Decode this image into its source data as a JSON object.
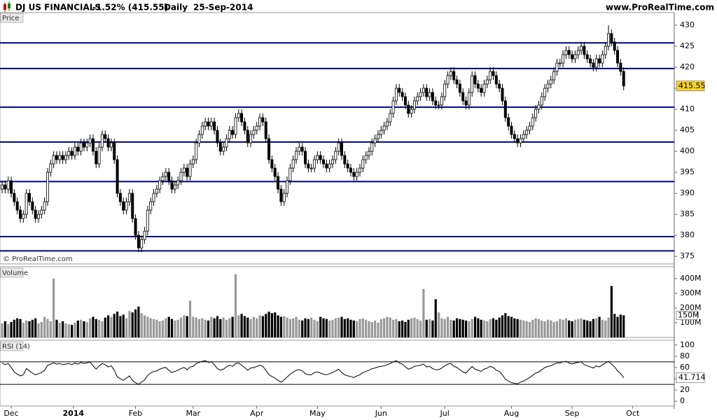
{
  "header": {
    "instrument": "DJ US FINANCIALS",
    "change": "-1.52% (415.55)",
    "period": "Daily",
    "date": "25-Sep-2014",
    "site": "www.ProRealTime.com"
  },
  "watermark": "© ProRealTime.com",
  "chart_data": [
    {
      "type": "candlestick",
      "label": "Price",
      "open": [
        391,
        392,
        391,
        393,
        390,
        388,
        386,
        384,
        385,
        390,
        388,
        386,
        384,
        385,
        386,
        388,
        395,
        397,
        399,
        398,
        399,
        398,
        399,
        400,
        399,
        401,
        400,
        402,
        401,
        402,
        403,
        400,
        397,
        401,
        404,
        403,
        401,
        402,
        398,
        390,
        388,
        386,
        388,
        390,
        384,
        380,
        377,
        379,
        381,
        386,
        388,
        390,
        391,
        393,
        394,
        395,
        393,
        391,
        392,
        393,
        395,
        396,
        394,
        397,
        398,
        402,
        404,
        406,
        407,
        406,
        407,
        405,
        402,
        400,
        401,
        403,
        405,
        404,
        408,
        409,
        407,
        405,
        402,
        404,
        405,
        406,
        408,
        407,
        403,
        398,
        396,
        394,
        391,
        388,
        390,
        393,
        396,
        398,
        400,
        401,
        400,
        397,
        396,
        396,
        398,
        399,
        398,
        397,
        396,
        397,
        398,
        400,
        402,
        399,
        397,
        396,
        395,
        394,
        395,
        396,
        398,
        399,
        400,
        402,
        403,
        404,
        405,
        406,
        407,
        409,
        412,
        415,
        414,
        413,
        411,
        409,
        410,
        412,
        413,
        414,
        415,
        413,
        414,
        412,
        411,
        411,
        413,
        416,
        418,
        419,
        417,
        416,
        414,
        412,
        411,
        414,
        418,
        416,
        415,
        414,
        416,
        417,
        419,
        418,
        416,
        415,
        412,
        408,
        406,
        404,
        403,
        402,
        403,
        404,
        405,
        406,
        408,
        410,
        411,
        413,
        415,
        416,
        417,
        419,
        421,
        421,
        423,
        424,
        423,
        422,
        423,
        424,
        425,
        423,
        422,
        421,
        420,
        422,
        421,
        423,
        425,
        428,
        426,
        424,
        421,
        419
      ],
      "high": [
        393,
        393,
        394,
        394,
        391,
        389,
        387,
        386,
        391,
        391,
        389,
        387,
        386,
        387,
        389,
        396,
        398,
        400,
        400,
        400,
        400,
        400,
        401,
        401,
        402,
        402,
        403,
        403,
        403,
        404,
        404,
        401,
        402,
        405,
        405,
        404,
        403,
        403,
        399,
        391,
        389,
        389,
        391,
        391,
        385,
        381,
        380,
        382,
        387,
        389,
        391,
        392,
        394,
        395,
        396,
        396,
        394,
        393,
        394,
        396,
        397,
        397,
        398,
        399,
        403,
        405,
        407,
        408,
        408,
        408,
        408,
        406,
        403,
        402,
        404,
        406,
        406,
        409,
        410,
        410,
        408,
        406,
        405,
        406,
        407,
        409,
        409,
        408,
        404,
        399,
        397,
        395,
        392,
        391,
        394,
        397,
        399,
        401,
        402,
        402,
        401,
        398,
        397,
        399,
        400,
        400,
        399,
        398,
        398,
        399,
        401,
        403,
        403,
        400,
        398,
        397,
        396,
        396,
        397,
        399,
        400,
        401,
        403,
        404,
        405,
        406,
        407,
        408,
        410,
        413,
        416,
        416,
        415,
        414,
        412,
        411,
        413,
        414,
        415,
        416,
        416,
        415,
        415,
        413,
        412,
        414,
        417,
        419,
        420,
        420,
        418,
        417,
        415,
        413,
        415,
        419,
        419,
        417,
        416,
        417,
        418,
        420,
        420,
        419,
        417,
        416,
        413,
        409,
        407,
        405,
        404,
        404,
        405,
        406,
        407,
        409,
        411,
        412,
        414,
        416,
        417,
        418,
        420,
        422,
        422,
        424,
        425,
        425,
        424,
        424,
        425,
        426,
        426,
        424,
        423,
        422,
        423,
        423,
        424,
        426,
        430,
        429,
        427,
        425,
        422,
        420
      ],
      "low": [
        390,
        390,
        390,
        389,
        387,
        385,
        383,
        383,
        384,
        387,
        385,
        383,
        383,
        384,
        385,
        387,
        394,
        396,
        397,
        397,
        397,
        397,
        398,
        398,
        398,
        399,
        399,
        400,
        400,
        401,
        399,
        396,
        396,
        400,
        402,
        400,
        400,
        397,
        389,
        387,
        385,
        385,
        387,
        383,
        379,
        376,
        376,
        378,
        380,
        385,
        387,
        389,
        390,
        392,
        393,
        392,
        390,
        390,
        391,
        392,
        394,
        393,
        393,
        396,
        397,
        401,
        403,
        405,
        405,
        405,
        404,
        401,
        399,
        399,
        400,
        402,
        403,
        403,
        407,
        406,
        404,
        401,
        401,
        403,
        404,
        405,
        406,
        402,
        397,
        395,
        393,
        390,
        387,
        387,
        389,
        392,
        395,
        397,
        399,
        399,
        396,
        395,
        395,
        395,
        397,
        397,
        396,
        395,
        395,
        396,
        397,
        399,
        398,
        396,
        395,
        394,
        393,
        393,
        394,
        395,
        397,
        398,
        399,
        401,
        402,
        403,
        404,
        405,
        406,
        408,
        411,
        413,
        412,
        410,
        408,
        408,
        409,
        411,
        412,
        413,
        412,
        412,
        411,
        410,
        410,
        410,
        412,
        415,
        417,
        416,
        415,
        413,
        411,
        410,
        410,
        413,
        415,
        414,
        413,
        413,
        415,
        416,
        417,
        415,
        414,
        411,
        407,
        405,
        403,
        402,
        401,
        401,
        402,
        403,
        404,
        405,
        407,
        409,
        410,
        412,
        414,
        415,
        416,
        418,
        420,
        420,
        422,
        422,
        421,
        421,
        422,
        423,
        422,
        421,
        420,
        419,
        419,
        420,
        420,
        422,
        424,
        425,
        423,
        420,
        418,
        414.5
      ],
      "close": [
        392,
        391,
        393,
        390,
        388,
        386,
        384,
        385,
        390,
        388,
        386,
        384,
        385,
        386,
        388,
        395,
        397,
        399,
        398,
        399,
        398,
        399,
        400,
        399,
        401,
        400,
        402,
        401,
        402,
        403,
        400,
        397,
        401,
        404,
        403,
        401,
        402,
        398,
        390,
        388,
        386,
        388,
        390,
        384,
        380,
        377,
        379,
        381,
        386,
        388,
        390,
        391,
        393,
        394,
        395,
        393,
        391,
        392,
        393,
        395,
        396,
        394,
        397,
        398,
        402,
        404,
        406,
        407,
        406,
        407,
        405,
        402,
        400,
        401,
        403,
        405,
        404,
        408,
        409,
        407,
        405,
        402,
        404,
        405,
        406,
        408,
        407,
        403,
        398,
        396,
        394,
        391,
        388,
        390,
        393,
        396,
        398,
        400,
        401,
        400,
        397,
        396,
        396,
        398,
        399,
        398,
        397,
        396,
        397,
        398,
        400,
        402,
        399,
        397,
        396,
        395,
        394,
        395,
        396,
        398,
        399,
        400,
        402,
        403,
        404,
        405,
        406,
        407,
        409,
        412,
        415,
        414,
        413,
        411,
        409,
        410,
        412,
        413,
        414,
        415,
        413,
        414,
        412,
        411,
        411,
        413,
        416,
        418,
        419,
        417,
        416,
        414,
        412,
        411,
        414,
        418,
        416,
        415,
        414,
        416,
        417,
        419,
        418,
        416,
        415,
        412,
        408,
        406,
        404,
        403,
        402,
        403,
        404,
        405,
        406,
        408,
        410,
        411,
        413,
        415,
        416,
        417,
        419,
        421,
        421,
        423,
        424,
        423,
        422,
        423,
        424,
        425,
        423,
        422,
        421,
        420,
        422,
        421,
        423,
        425,
        428,
        426,
        424,
        421,
        419,
        415.55
      ],
      "up_color": "#ffffff",
      "down_color": "#000000",
      "level_color": "#000080",
      "levels": [
        425.8,
        419.7,
        410.5,
        402.2,
        392.8,
        379.7,
        376.3
      ],
      "ylim": [
        373.2,
        433
      ],
      "yticks": [
        375,
        380,
        385,
        390,
        395,
        400,
        405,
        410,
        415,
        420,
        425,
        430
      ],
      "xlim": [
        -0.7,
        221.7
      ],
      "xticks": [
        {
          "value": 3,
          "label": "Dec"
        },
        {
          "value": 23.5,
          "label": "2014"
        },
        {
          "value": 44,
          "label": "Feb"
        },
        {
          "value": 63,
          "label": "Mar"
        },
        {
          "value": 84,
          "label": "Apr"
        },
        {
          "value": 104,
          "label": "May"
        },
        {
          "value": 125,
          "label": "Jun"
        },
        {
          "value": 146,
          "label": "Jul"
        },
        {
          "value": 168,
          "label": "Aug"
        },
        {
          "value": 188,
          "label": "Sep"
        },
        {
          "value": 208,
          "label": "Oct"
        }
      ]
    },
    {
      "type": "bar",
      "label": "Volume",
      "up_color": "#999999",
      "down_color": "#000000",
      "last_label": "150M",
      "values": [
        95000000,
        110000000,
        90000000,
        105000000,
        120000000,
        130000000,
        125000000,
        100000000,
        115000000,
        110000000,
        120000000,
        130000000,
        95000000,
        105000000,
        140000000,
        125000000,
        110000000,
        400000000,
        120000000,
        100000000,
        110000000,
        95000000,
        90000000,
        85000000,
        100000000,
        115000000,
        120000000,
        110000000,
        105000000,
        130000000,
        140000000,
        125000000,
        120000000,
        110000000,
        135000000,
        150000000,
        140000000,
        160000000,
        175000000,
        145000000,
        155000000,
        130000000,
        180000000,
        170000000,
        190000000,
        210000000,
        165000000,
        150000000,
        140000000,
        130000000,
        125000000,
        120000000,
        110000000,
        115000000,
        130000000,
        140000000,
        125000000,
        115000000,
        120000000,
        135000000,
        150000000,
        145000000,
        250000000,
        140000000,
        135000000,
        125000000,
        130000000,
        120000000,
        115000000,
        140000000,
        130000000,
        145000000,
        125000000,
        135000000,
        120000000,
        130000000,
        140000000,
        430000000,
        150000000,
        160000000,
        145000000,
        135000000,
        125000000,
        140000000,
        130000000,
        150000000,
        145000000,
        160000000,
        175000000,
        165000000,
        170000000,
        150000000,
        140000000,
        145000000,
        135000000,
        125000000,
        130000000,
        140000000,
        120000000,
        115000000,
        130000000,
        125000000,
        135000000,
        120000000,
        110000000,
        140000000,
        130000000,
        125000000,
        115000000,
        120000000,
        130000000,
        135000000,
        140000000,
        125000000,
        130000000,
        120000000,
        115000000,
        110000000,
        125000000,
        130000000,
        120000000,
        110000000,
        105000000,
        115000000,
        100000000,
        125000000,
        130000000,
        140000000,
        135000000,
        120000000,
        125000000,
        110000000,
        115000000,
        105000000,
        120000000,
        130000000,
        135000000,
        125000000,
        115000000,
        330000000,
        120000000,
        125000000,
        115000000,
        260000000,
        170000000,
        130000000,
        125000000,
        140000000,
        120000000,
        115000000,
        130000000,
        125000000,
        120000000,
        115000000,
        110000000,
        125000000,
        140000000,
        130000000,
        120000000,
        115000000,
        110000000,
        125000000,
        130000000,
        120000000,
        135000000,
        150000000,
        165000000,
        145000000,
        140000000,
        130000000,
        125000000,
        120000000,
        115000000,
        110000000,
        105000000,
        120000000,
        130000000,
        125000000,
        115000000,
        110000000,
        120000000,
        115000000,
        105000000,
        110000000,
        125000000,
        120000000,
        130000000,
        115000000,
        110000000,
        120000000,
        125000000,
        130000000,
        120000000,
        115000000,
        110000000,
        125000000,
        130000000,
        140000000,
        120000000,
        115000000,
        135000000,
        350000000,
        160000000,
        140000000,
        155000000,
        150000000
      ],
      "ylim": [
        0,
        481000000
      ],
      "yticks": [
        {
          "value": 100000000,
          "label": "100M"
        },
        {
          "value": 200000000,
          "label": "200M"
        },
        {
          "value": 300000000,
          "label": "300M"
        },
        {
          "value": 400000000,
          "label": "400M"
        }
      ]
    },
    {
      "type": "line",
      "label": "RSI (14)",
      "color": "#000000",
      "level_color": "#000000",
      "levels": [
        30,
        70
      ],
      "values": [
        68,
        65,
        67,
        60,
        52,
        48,
        45,
        47,
        58,
        54,
        50,
        47,
        49,
        51,
        55,
        64,
        66,
        68,
        66,
        67,
        65,
        66,
        67,
        65,
        68,
        66,
        69,
        67,
        68,
        70,
        63,
        57,
        63,
        67,
        65,
        61,
        63,
        55,
        43,
        40,
        37,
        41,
        45,
        37,
        33,
        30,
        34,
        38,
        46,
        50,
        53,
        54,
        57,
        59,
        60,
        55,
        51,
        53,
        55,
        58,
        60,
        56,
        61,
        62,
        67,
        69,
        71,
        72,
        69,
        70,
        65,
        58,
        55,
        57,
        61,
        64,
        62,
        67,
        68,
        64,
        60,
        55,
        59,
        60,
        62,
        64,
        62,
        55,
        47,
        44,
        41,
        37,
        34,
        38,
        43,
        48,
        52,
        55,
        56,
        54,
        49,
        47,
        47,
        51,
        52,
        50,
        48,
        47,
        49,
        51,
        54,
        57,
        51,
        47,
        45,
        44,
        42,
        45,
        47,
        51,
        53,
        55,
        58,
        59,
        61,
        62,
        63,
        65,
        67,
        70,
        72,
        68,
        66,
        61,
        57,
        59,
        62,
        63,
        64,
        66,
        61,
        62,
        58,
        56,
        56,
        59,
        63,
        66,
        67,
        62,
        60,
        56,
        52,
        50,
        56,
        62,
        57,
        55,
        53,
        57,
        59,
        62,
        60,
        55,
        53,
        47,
        39,
        36,
        33,
        32,
        31,
        34,
        36,
        39,
        42,
        46,
        50,
        52,
        56,
        60,
        62,
        63,
        66,
        68,
        68,
        70,
        71,
        68,
        66,
        68,
        69,
        70,
        65,
        63,
        61,
        59,
        63,
        61,
        65,
        68,
        71,
        66,
        61,
        54,
        49,
        41.714
      ],
      "ylim": [
        -8.5,
        108.5
      ],
      "yticks": [
        0,
        20,
        40,
        60,
        80,
        100
      ]
    }
  ]
}
